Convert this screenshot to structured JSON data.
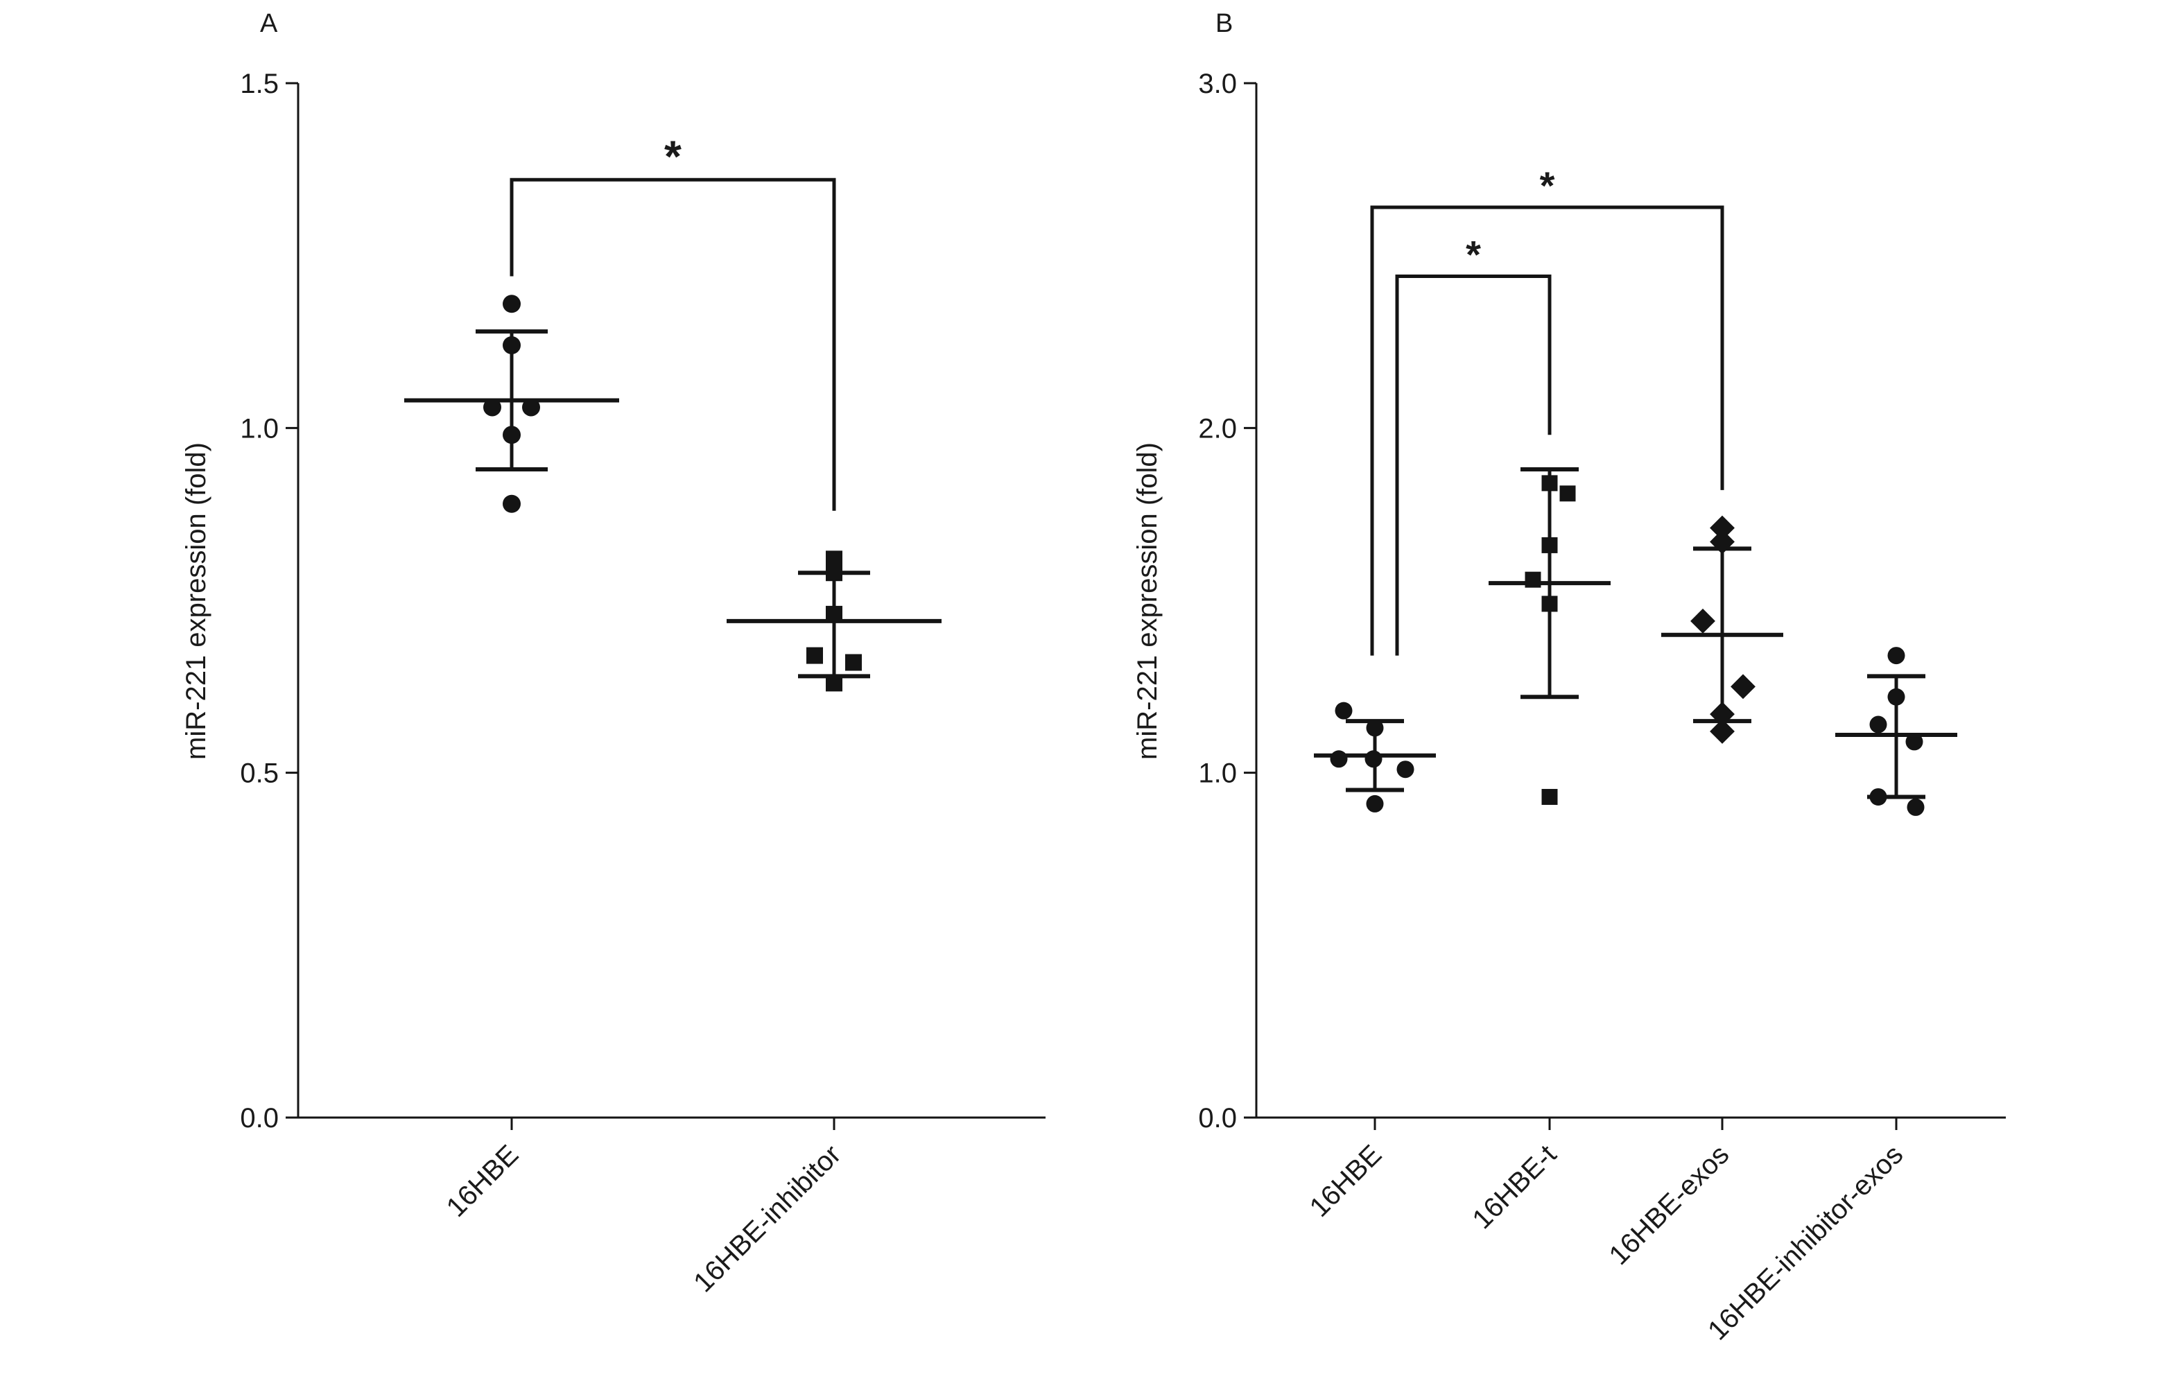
{
  "chart_data": [
    {
      "panel_label": "A",
      "type": "scatter",
      "ylabel": "miR-221 expression (fold)",
      "ylim": [
        0,
        1.5
      ],
      "yticks": [
        0.0,
        0.5,
        1.0,
        1.5
      ],
      "ytick_labels": [
        "0.0",
        "0.5",
        "1.0",
        "1.5"
      ],
      "categories": [
        "16HBE",
        "16HBE-inhibitor"
      ],
      "groups": [
        {
          "category": "16HBE",
          "marker": "circle",
          "points": [
            1.18,
            1.12,
            1.03,
            1.03,
            0.99,
            0.89
          ],
          "mean": 1.04,
          "sd_low": 0.94,
          "sd_high": 1.14
        },
        {
          "category": "16HBE-inhibitor",
          "marker": "square",
          "points": [
            0.81,
            0.79,
            0.73,
            0.67,
            0.66,
            0.63
          ],
          "mean": 0.72,
          "sd_low": 0.64,
          "sd_high": 0.79
        }
      ],
      "significance": [
        {
          "from": "16HBE",
          "to": "16HBE-inhibitor",
          "label": "*",
          "level": 1.36,
          "left_end": 1.22,
          "right_end": 0.88
        }
      ]
    },
    {
      "panel_label": "B",
      "type": "scatter",
      "ylabel": "miR-221 expression (fold)",
      "ylim": [
        0,
        3.0
      ],
      "yticks": [
        0.0,
        1.0,
        2.0,
        3.0
      ],
      "ytick_labels": [
        "0.0",
        "1.0",
        "2.0",
        "3.0"
      ],
      "categories": [
        "16HBE",
        "16HBE-t",
        "16HBE-exos",
        "16HBE-inhibitor-exos"
      ],
      "groups": [
        {
          "category": "16HBE",
          "marker": "circle",
          "points": [
            1.18,
            1.13,
            1.04,
            1.04,
            1.01,
            0.91
          ],
          "mean": 1.05,
          "sd_low": 0.95,
          "sd_high": 1.15
        },
        {
          "category": "16HBE-t",
          "marker": "square",
          "points": [
            1.84,
            1.81,
            1.66,
            1.56,
            1.49,
            0.93
          ],
          "mean": 1.55,
          "sd_low": 1.22,
          "sd_high": 1.88
        },
        {
          "category": "16HBE-exos",
          "marker": "diamond",
          "points": [
            1.71,
            1.67,
            1.44,
            1.25,
            1.17,
            1.12
          ],
          "mean": 1.4,
          "sd_low": 1.15,
          "sd_high": 1.65
        },
        {
          "category": "16HBE-inhibitor-exos",
          "marker": "circle",
          "points": [
            1.34,
            1.22,
            1.14,
            1.09,
            0.93,
            0.9
          ],
          "mean": 1.11,
          "sd_low": 0.93,
          "sd_high": 1.28
        }
      ],
      "significance": [
        {
          "from": "16HBE",
          "to": "16HBE-t",
          "label": "*",
          "level": 2.44,
          "left_end": 1.34,
          "right_end": 1.98
        },
        {
          "from": "16HBE",
          "to": "16HBE-exos",
          "label": "*",
          "level": 2.64,
          "left_end": 1.34,
          "right_end": 1.82
        }
      ]
    }
  ]
}
